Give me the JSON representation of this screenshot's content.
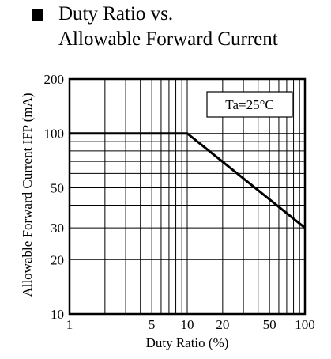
{
  "chart_data": {
    "type": "line",
    "title_lines": [
      "Duty Ratio vs.",
      "Allowable Forward Current"
    ],
    "xlabel": "Duty Ratio (%)",
    "ylabel": "Allowable Forward Current IFP (mA)",
    "x_scale": "log",
    "y_scale": "log",
    "xlim": [
      1,
      100
    ],
    "ylim": [
      10,
      200
    ],
    "x_ticks": [
      1,
      5,
      10,
      20,
      50,
      100
    ],
    "y_ticks": [
      10,
      20,
      30,
      50,
      100,
      200
    ],
    "grid": true,
    "annotation": "Ta=25°C",
    "series": [
      {
        "x": [
          1,
          10,
          100
        ],
        "y": [
          100,
          100,
          30
        ]
      }
    ]
  }
}
